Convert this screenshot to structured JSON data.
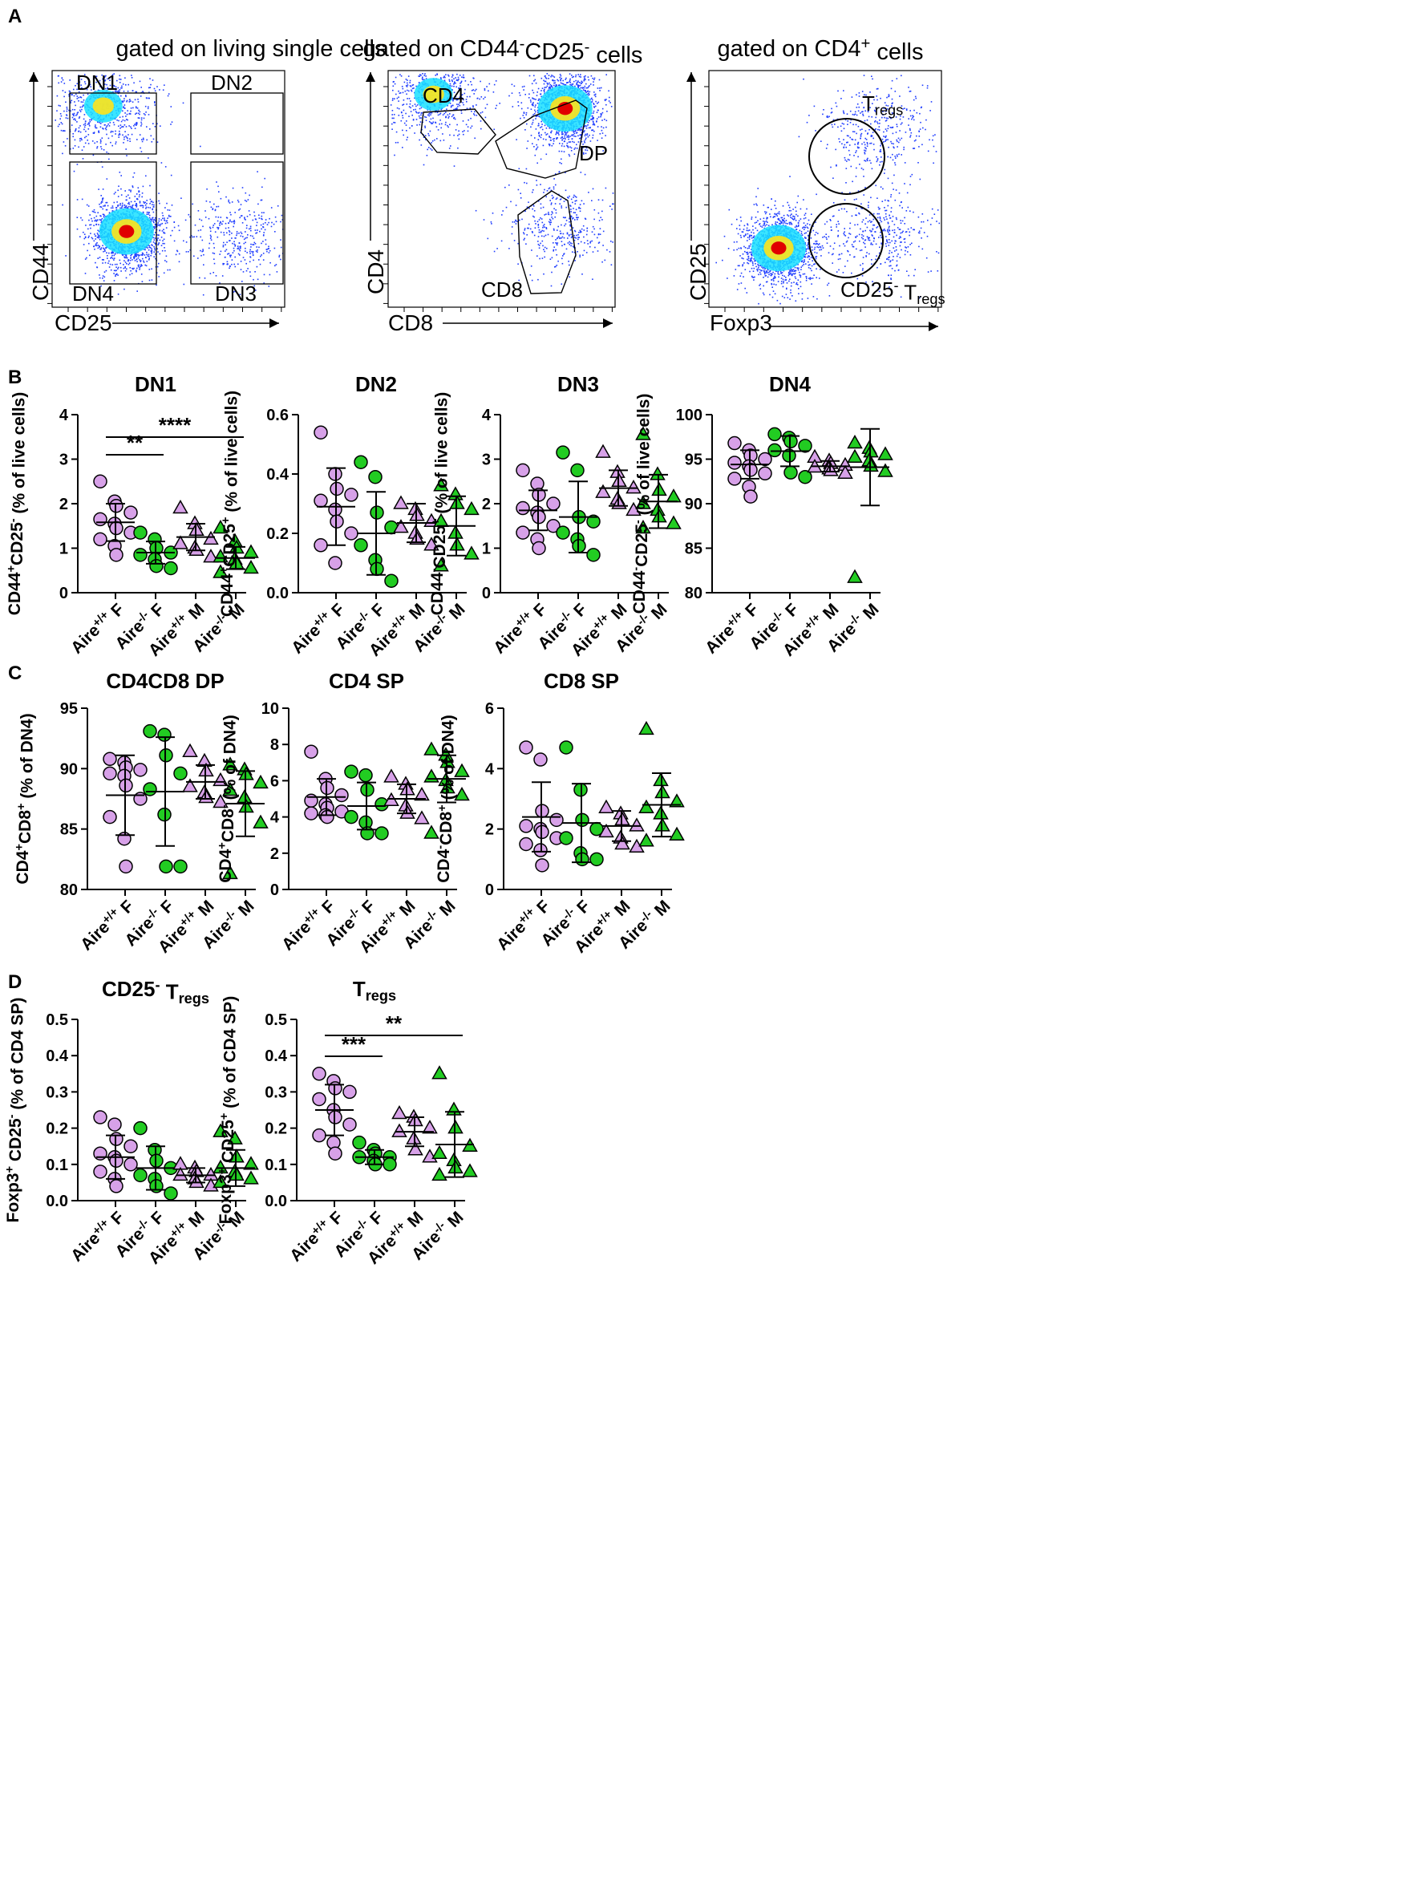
{
  "figure": {
    "panel_labels": [
      "A",
      "B",
      "C",
      "D"
    ],
    "groups": [
      "Aire+/+ F",
      "Aire-/- F",
      "Aire+/+ M",
      "Aire-/- M"
    ],
    "colors": {
      "wt": "#d7a1e8",
      "ko": "#22cc22",
      "marker_stroke": "#000000",
      "density_low": "#1f3dff",
      "density_mid": "#19e0ff",
      "density_high": "#e00000"
    }
  },
  "chart_data": [
    {
      "id": "A1",
      "type": "scatter",
      "style": "flow-density",
      "title": "gated on living single cells",
      "xlabel": "CD25",
      "ylabel": "CD44",
      "gates": [
        "DN1",
        "DN2",
        "DN4",
        "DN3"
      ],
      "clusters": [
        {
          "x": 0.32,
          "y": 0.32,
          "density": "high"
        },
        {
          "x": 0.22,
          "y": 0.85,
          "density": "medium"
        },
        {
          "x": 0.8,
          "y": 0.3,
          "density": "low"
        }
      ],
      "xlim": [
        0,
        1
      ],
      "ylim": [
        0,
        1
      ]
    },
    {
      "id": "A2",
      "type": "scatter",
      "style": "flow-density",
      "title": "gated on CD44-CD25- cells",
      "xlabel": "CD8",
      "ylabel": "CD4",
      "gates": [
        "CD4",
        "DP",
        "CD8"
      ],
      "clusters": [
        {
          "x": 0.78,
          "y": 0.84,
          "density": "high"
        },
        {
          "x": 0.2,
          "y": 0.9,
          "density": "medium"
        },
        {
          "x": 0.75,
          "y": 0.35,
          "density": "low"
        }
      ],
      "xlim": [
        0,
        1
      ],
      "ylim": [
        0,
        1
      ]
    },
    {
      "id": "A3",
      "type": "scatter",
      "style": "flow-density",
      "title": "gated on CD4+ cells",
      "xlabel": "Foxp3",
      "ylabel": "CD25",
      "gates": [
        "Tregs",
        "CD25- Tregs"
      ],
      "clusters": [
        {
          "x": 0.3,
          "y": 0.25,
          "density": "high"
        },
        {
          "x": 0.72,
          "y": 0.75,
          "density": "low"
        },
        {
          "x": 0.72,
          "y": 0.3,
          "density": "low"
        }
      ],
      "xlim": [
        0,
        1
      ],
      "ylim": [
        0,
        1
      ]
    },
    {
      "id": "DN1",
      "type": "scatter",
      "title": "DN1",
      "ylabel": "CD44+CD25- (% of live cells)",
      "categories": [
        "Aire+/+ F",
        "Aire-/- F",
        "Aire+/+ M",
        "Aire-/- M"
      ],
      "ylim": [
        0,
        4
      ],
      "yticks": [
        0,
        1,
        2,
        3,
        4
      ],
      "yticklabels": [
        "0",
        "1",
        "2",
        "3",
        "4"
      ],
      "series": [
        {
          "name": "Aire+/+ F",
          "marker": "circle",
          "values": [
            2.5,
            2.05,
            1.95,
            1.8,
            1.65,
            1.55,
            1.45,
            1.35,
            1.2,
            1.05,
            0.85
          ],
          "mean": 1.58,
          "sd": 0.42
        },
        {
          "name": "Aire-/- F",
          "marker": "circle",
          "values": [
            1.35,
            1.2,
            1.0,
            0.9,
            0.85,
            0.75,
            0.6,
            0.55
          ],
          "mean": 0.9,
          "sd": 0.25
        },
        {
          "name": "Aire+/+ M",
          "marker": "triangle",
          "values": [
            1.9,
            1.55,
            1.4,
            1.2,
            1.1,
            1.0,
            0.95,
            0.8
          ],
          "mean": 1.25,
          "sd": 0.3
        },
        {
          "name": "Aire-/- M",
          "marker": "triangle",
          "values": [
            1.45,
            1.15,
            1.0,
            0.9,
            0.8,
            0.75,
            0.65,
            0.55,
            0.45
          ],
          "mean": 0.78,
          "sd": 0.25
        }
      ],
      "significance": [
        {
          "from": 0,
          "to": 1,
          "label": "**"
        },
        {
          "from": 0,
          "to": 3,
          "label": "****"
        }
      ]
    },
    {
      "id": "DN2",
      "type": "scatter",
      "title": "DN2",
      "ylabel": "CD44+CD25+ (% of live cells)",
      "categories": [
        "Aire+/+ F",
        "Aire-/- F",
        "Aire+/+ M",
        "Aire-/- M"
      ],
      "ylim": [
        0,
        0.6
      ],
      "yticks": [
        0,
        0.2,
        0.4,
        0.6
      ],
      "yticklabels": [
        "0.0",
        "0.2",
        "0.4",
        "0.6"
      ],
      "series": [
        {
          "name": "Aire+/+ F",
          "marker": "circle",
          "values": [
            0.54,
            0.4,
            0.35,
            0.33,
            0.31,
            0.28,
            0.24,
            0.2,
            0.16,
            0.1
          ],
          "mean": 0.29,
          "sd": 0.13
        },
        {
          "name": "Aire-/- F",
          "marker": "circle",
          "values": [
            0.44,
            0.39,
            0.27,
            0.22,
            0.16,
            0.11,
            0.08,
            0.04
          ],
          "mean": 0.2,
          "sd": 0.14
        },
        {
          "name": "Aire+/+ M",
          "marker": "triangle",
          "values": [
            0.3,
            0.28,
            0.26,
            0.24,
            0.22,
            0.2,
            0.18,
            0.16
          ],
          "mean": 0.235,
          "sd": 0.065
        },
        {
          "name": "Aire-/- M",
          "marker": "triangle",
          "values": [
            0.36,
            0.33,
            0.3,
            0.28,
            0.24,
            0.2,
            0.16,
            0.13,
            0.09
          ],
          "mean": 0.225,
          "sd": 0.1
        }
      ],
      "significance": []
    },
    {
      "id": "DN3",
      "type": "scatter",
      "title": "DN3",
      "ylabel": "CD44-CD25+ (% of live cells)",
      "categories": [
        "Aire+/+ F",
        "Aire-/- F",
        "Aire+/+ M",
        "Aire-/- M"
      ],
      "ylim": [
        0,
        4
      ],
      "yticks": [
        0,
        1,
        2,
        3,
        4
      ],
      "yticklabels": [
        "0",
        "1",
        "2",
        "3",
        "4"
      ],
      "series": [
        {
          "name": "Aire+/+ F",
          "marker": "circle",
          "values": [
            2.75,
            2.45,
            2.2,
            2.0,
            1.9,
            1.8,
            1.7,
            1.5,
            1.35,
            1.2,
            1.0
          ],
          "mean": 1.85,
          "sd": 0.45
        },
        {
          "name": "Aire-/- F",
          "marker": "circle",
          "values": [
            3.15,
            2.75,
            1.7,
            1.6,
            1.35,
            1.2,
            1.05,
            0.85
          ],
          "mean": 1.7,
          "sd": 0.8
        },
        {
          "name": "Aire+/+ M",
          "marker": "triangle",
          "values": [
            3.15,
            2.7,
            2.5,
            2.35,
            2.25,
            2.1,
            2.0,
            1.85
          ],
          "mean": 2.35,
          "sd": 0.4
        },
        {
          "name": "Aire-/- M",
          "marker": "triangle",
          "values": [
            3.55,
            2.65,
            2.3,
            2.15,
            2.0,
            1.85,
            1.7,
            1.55,
            1.45
          ],
          "mean": 2.05,
          "sd": 0.6
        }
      ],
      "significance": []
    },
    {
      "id": "DN4",
      "type": "scatter",
      "title": "DN4",
      "ylabel": "CD44-CD25- (% of live cells)",
      "categories": [
        "Aire+/+ F",
        "Aire-/- F",
        "Aire+/+ M",
        "Aire-/- M"
      ],
      "ylim": [
        80,
        100
      ],
      "yticks": [
        80,
        85,
        90,
        95,
        100
      ],
      "yticklabels": [
        "80",
        "85",
        "90",
        "95",
        "100"
      ],
      "series": [
        {
          "name": "Aire+/+ F",
          "marker": "circle",
          "values": [
            96.8,
            96.0,
            95.4,
            95.0,
            94.6,
            94.2,
            93.8,
            93.4,
            92.8,
            91.9,
            90.8
          ],
          "mean": 94.4,
          "sd": 1.6
        },
        {
          "name": "Aire-/- F",
          "marker": "circle",
          "values": [
            97.8,
            97.4,
            97.0,
            96.5,
            96.0,
            95.4,
            93.5,
            93.0
          ],
          "mean": 95.9,
          "sd": 1.7
        },
        {
          "name": "Aire+/+ M",
          "marker": "triangle",
          "values": [
            95.2,
            94.8,
            94.5,
            94.3,
            94.1,
            93.9,
            93.7,
            93.4
          ],
          "mean": 94.2,
          "sd": 0.6
        },
        {
          "name": "Aire-/- M",
          "marker": "triangle",
          "values": [
            96.8,
            96.2,
            95.8,
            95.5,
            95.2,
            94.8,
            94.2,
            93.6,
            81.7
          ],
          "mean": 94.1,
          "sd": 4.3
        }
      ],
      "significance": []
    },
    {
      "id": "DP",
      "type": "scatter",
      "title": "CD4CD8 DP",
      "ylabel": "CD4+CD8+ (% of DN4)",
      "categories": [
        "Aire+/+ F",
        "Aire-/- F",
        "Aire+/+ M",
        "Aire-/- M"
      ],
      "ylim": [
        80,
        95
      ],
      "yticks": [
        80,
        85,
        90,
        95
      ],
      "yticklabels": [
        "80",
        "85",
        "90",
        "95"
      ],
      "series": [
        {
          "name": "Aire+/+ F",
          "marker": "circle",
          "values": [
            90.8,
            90.5,
            90.1,
            89.9,
            89.6,
            89.4,
            88.6,
            87.5,
            86.0,
            84.2,
            81.9
          ],
          "mean": 87.8,
          "sd": 3.3
        },
        {
          "name": "Aire-/- F",
          "marker": "circle",
          "values": [
            93.1,
            92.8,
            91.1,
            89.6,
            88.3,
            86.2,
            81.9,
            81.9
          ],
          "mean": 88.1,
          "sd": 4.5
        },
        {
          "name": "Aire+/+ M",
          "marker": "triangle",
          "values": [
            91.4,
            90.6,
            89.8,
            89.0,
            88.5,
            88.0,
            87.6,
            87.2
          ],
          "mean": 88.9,
          "sd": 1.4
        },
        {
          "name": "Aire-/- M",
          "marker": "triangle",
          "values": [
            90.3,
            89.9,
            89.5,
            88.8,
            88.2,
            87.6,
            86.8,
            85.5,
            81.3
          ],
          "mean": 87.1,
          "sd": 2.7
        }
      ],
      "significance": []
    },
    {
      "id": "CD4SP",
      "type": "scatter",
      "title": "CD4 SP",
      "ylabel": "CD4+CD8- (% of DN4)",
      "categories": [
        "Aire+/+ F",
        "Aire-/- F",
        "Aire+/+ M",
        "Aire-/- M"
      ],
      "ylim": [
        0,
        10
      ],
      "yticks": [
        0,
        2,
        4,
        6,
        8,
        10
      ],
      "yticklabels": [
        "0",
        "2",
        "4",
        "6",
        "8",
        "10"
      ],
      "series": [
        {
          "name": "Aire+/+ F",
          "marker": "circle",
          "values": [
            7.6,
            6.1,
            5.6,
            5.2,
            4.9,
            4.7,
            4.5,
            4.3,
            4.2,
            4.1,
            4.0
          ],
          "mean": 5.1,
          "sd": 1.0
        },
        {
          "name": "Aire-/- F",
          "marker": "circle",
          "values": [
            6.5,
            6.3,
            5.5,
            4.7,
            4.0,
            3.7,
            3.1,
            3.1
          ],
          "mean": 4.6,
          "sd": 1.3
        },
        {
          "name": "Aire+/+ M",
          "marker": "triangle",
          "values": [
            6.2,
            5.8,
            5.5,
            5.2,
            4.9,
            4.6,
            4.2,
            3.9
          ],
          "mean": 5.0,
          "sd": 0.8
        },
        {
          "name": "Aire-/- M",
          "marker": "triangle",
          "values": [
            7.7,
            7.4,
            7.0,
            6.5,
            6.2,
            6.0,
            5.6,
            5.2,
            3.1
          ],
          "mean": 6.1,
          "sd": 1.3
        }
      ],
      "significance": []
    },
    {
      "id": "CD8SP",
      "type": "scatter",
      "title": "CD8 SP",
      "ylabel": "CD4-CD8+ (% of DN4)",
      "categories": [
        "Aire+/+ F",
        "Aire-/- F",
        "Aire+/+ M",
        "Aire-/- M"
      ],
      "ylim": [
        0,
        6
      ],
      "yticks": [
        0,
        2,
        4,
        6
      ],
      "yticklabels": [
        "0",
        "2",
        "4",
        "6"
      ],
      "series": [
        {
          "name": "Aire+/+ F",
          "marker": "circle",
          "values": [
            4.7,
            4.3,
            2.6,
            2.3,
            2.1,
            2.0,
            1.9,
            1.7,
            1.5,
            1.3,
            0.8
          ],
          "mean": 2.4,
          "sd": 1.15
        },
        {
          "name": "Aire-/- F",
          "marker": "circle",
          "values": [
            4.7,
            3.3,
            2.3,
            2.0,
            1.7,
            1.2,
            1.0,
            1.0
          ],
          "mean": 2.2,
          "sd": 1.3
        },
        {
          "name": "Aire+/+ M",
          "marker": "triangle",
          "values": [
            2.7,
            2.5,
            2.3,
            2.1,
            1.9,
            1.7,
            1.5,
            1.4
          ],
          "mean": 2.1,
          "sd": 0.5
        },
        {
          "name": "Aire-/- M",
          "marker": "triangle",
          "values": [
            5.3,
            3.6,
            3.2,
            2.9,
            2.7,
            2.5,
            2.1,
            1.8,
            1.6
          ],
          "mean": 2.8,
          "sd": 1.05
        }
      ],
      "significance": []
    },
    {
      "id": "CD25negTregs",
      "type": "scatter",
      "title": "CD25- Tregs",
      "ylabel": "Foxp3+ CD25- (% of CD4 SP)",
      "categories": [
        "Aire+/+ F",
        "Aire-/- F",
        "Aire+/+ M",
        "Aire-/- M"
      ],
      "ylim": [
        0,
        0.5
      ],
      "yticks": [
        0,
        0.1,
        0.2,
        0.3,
        0.4,
        0.5
      ],
      "yticklabels": [
        "0.0",
        "0.1",
        "0.2",
        "0.3",
        "0.4",
        "0.5"
      ],
      "series": [
        {
          "name": "Aire+/+ F",
          "marker": "circle",
          "values": [
            0.23,
            0.21,
            0.17,
            0.15,
            0.13,
            0.12,
            0.11,
            0.1,
            0.08,
            0.06,
            0.04
          ],
          "mean": 0.12,
          "sd": 0.06
        },
        {
          "name": "Aire-/- F",
          "marker": "circle",
          "values": [
            0.2,
            0.14,
            0.11,
            0.09,
            0.07,
            0.06,
            0.04,
            0.02
          ],
          "mean": 0.09,
          "sd": 0.06
        },
        {
          "name": "Aire+/+ M",
          "marker": "triangle",
          "values": [
            0.1,
            0.09,
            0.08,
            0.07,
            0.07,
            0.06,
            0.05,
            0.04
          ],
          "mean": 0.07,
          "sd": 0.02
        },
        {
          "name": "Aire-/- M",
          "marker": "triangle",
          "values": [
            0.19,
            0.17,
            0.12,
            0.1,
            0.09,
            0.08,
            0.07,
            0.06,
            0.05
          ],
          "mean": 0.09,
          "sd": 0.05
        }
      ],
      "significance": []
    },
    {
      "id": "Tregs",
      "type": "scatter",
      "title": "Tregs",
      "ylabel": "Foxp3+ CD25+ (% of CD4 SP)",
      "categories": [
        "Aire+/+ F",
        "Aire-/- F",
        "Aire+/+ M",
        "Aire-/- M"
      ],
      "ylim": [
        0,
        0.5
      ],
      "yticks": [
        0,
        0.1,
        0.2,
        0.3,
        0.4,
        0.5
      ],
      "yticklabels": [
        "0.0",
        "0.1",
        "0.2",
        "0.3",
        "0.4",
        "0.5"
      ],
      "series": [
        {
          "name": "Aire+/+ F",
          "marker": "circle",
          "values": [
            0.35,
            0.33,
            0.31,
            0.3,
            0.28,
            0.25,
            0.23,
            0.21,
            0.18,
            0.16,
            0.13
          ],
          "mean": 0.25,
          "sd": 0.07
        },
        {
          "name": "Aire-/- F",
          "marker": "circle",
          "values": [
            0.16,
            0.14,
            0.13,
            0.12,
            0.12,
            0.11,
            0.1,
            0.1
          ],
          "mean": 0.12,
          "sd": 0.02
        },
        {
          "name": "Aire+/+ M",
          "marker": "triangle",
          "values": [
            0.24,
            0.23,
            0.22,
            0.2,
            0.19,
            0.17,
            0.14,
            0.12
          ],
          "mean": 0.19,
          "sd": 0.04
        },
        {
          "name": "Aire-/- M",
          "marker": "triangle",
          "values": [
            0.35,
            0.25,
            0.2,
            0.15,
            0.13,
            0.11,
            0.09,
            0.08,
            0.07
          ],
          "mean": 0.155,
          "sd": 0.09
        }
      ],
      "significance": [
        {
          "from": 0,
          "to": 1,
          "label": "***"
        },
        {
          "from": 0,
          "to": 3,
          "label": "**"
        }
      ]
    }
  ]
}
